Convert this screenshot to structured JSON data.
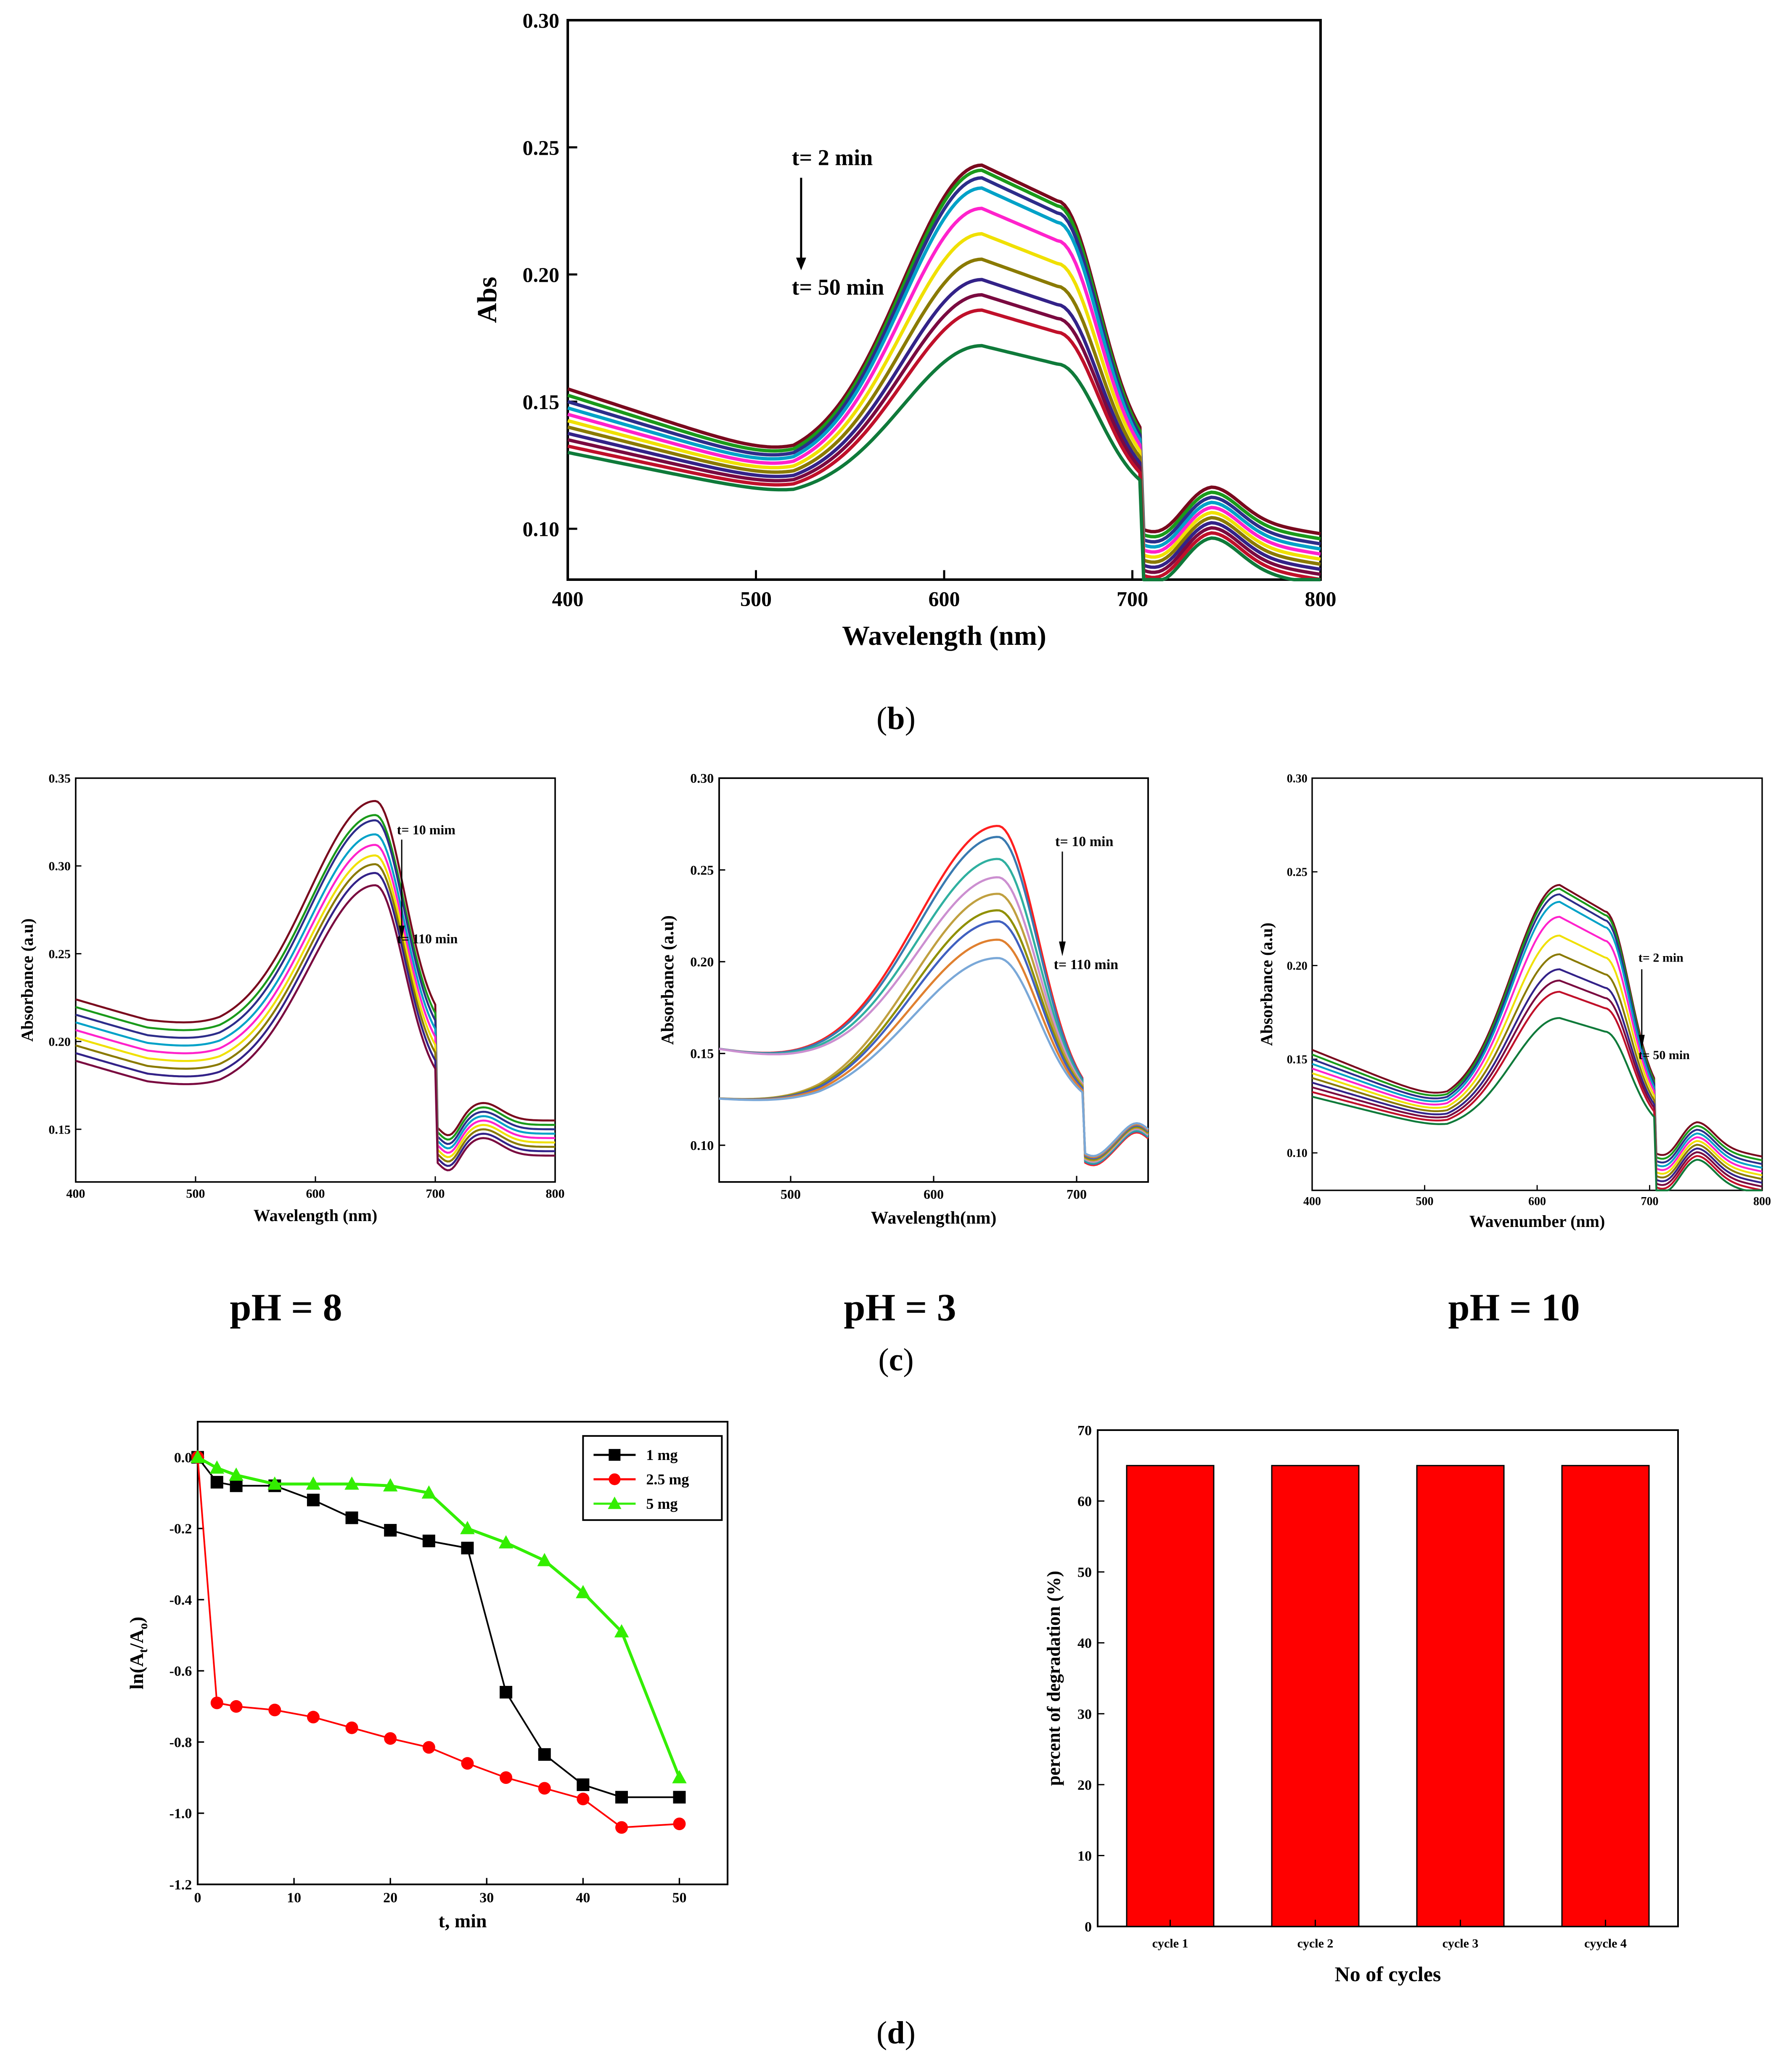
{
  "captions": {
    "b": "b",
    "c": "c",
    "d": "d"
  },
  "ph_labels": [
    "pH = 8",
    "pH = 3",
    "pH = 10"
  ],
  "colors": {
    "uv_palette": [
      "#7a0a1e",
      "#1a9a1a",
      "#2d2d8a",
      "#00a2c8",
      "#ff22cc",
      "#f0e000",
      "#8a7a00",
      "#332288",
      "#7a0a40",
      "#c0102a",
      "#0f7a3a"
    ],
    "ph3_palette": [
      "#ff2020",
      "#3a7ab0",
      "#30b0a0",
      "#cc8fd0",
      "#c0a040",
      "#909000",
      "#4060c0",
      "#e08030",
      "#7aa8d8"
    ],
    "series_1mg": "#000000",
    "series_25mg": "#ff0000",
    "series_5mg": "#33ee00",
    "bar_fill": "#ff0000"
  },
  "chart_data": [
    {
      "id": "b",
      "type": "line",
      "title": "",
      "xlabel": "Wavelength (nm)",
      "ylabel": "Abs",
      "xlim": [
        400,
        800
      ],
      "ylim": [
        0.08,
        0.3
      ],
      "xticks": [
        "400",
        "500",
        "600",
        "700",
        "800"
      ],
      "yticks": [
        "0.10",
        "0.15",
        "0.20",
        "0.25",
        "0.30"
      ],
      "annotations": {
        "start": "t= 2 min",
        "end": "t= 50 min"
      },
      "curves": {
        "x_peak": 620,
        "peaks": [
          0.243,
          0.241,
          0.238,
          0.234,
          0.226,
          0.216,
          0.206,
          0.198,
          0.192,
          0.186,
          0.172
        ]
      }
    },
    {
      "id": "c1",
      "type": "line",
      "xlabel": "Wavelength (nm)",
      "ylabel": "Absorbance (a.u)",
      "xlim": [
        400,
        800
      ],
      "ylim": [
        0.12,
        0.35
      ],
      "xticks": [
        "400",
        "500",
        "600",
        "700",
        "800"
      ],
      "yticks": [
        "0.15",
        "0.20",
        "0.25",
        "0.30",
        "0.35"
      ],
      "annotations": {
        "start": "t= 10 mim",
        "end": "t= 110 min"
      },
      "curves": {
        "x_peak": 650,
        "peaks": [
          0.337,
          0.329,
          0.326,
          0.318,
          0.312,
          0.306,
          0.301,
          0.296,
          0.289
        ]
      }
    },
    {
      "id": "c2",
      "type": "line",
      "xlabel": "Wavelength(nm)",
      "ylabel": "Absorbance (a.u)",
      "xlim": [
        450,
        750
      ],
      "ylim": [
        0.08,
        0.3
      ],
      "xticks": [
        "500",
        "600",
        "700"
      ],
      "yticks": [
        "0.10",
        "0.15",
        "0.20",
        "0.25",
        "0.30"
      ],
      "annotations": {
        "start": "t= 10 min",
        "end": "t= 110 min"
      },
      "curves": {
        "x_peak": 645,
        "peaks": [
          0.274,
          0.268,
          0.256,
          0.246,
          0.237,
          0.228,
          0.222,
          0.212,
          0.202
        ]
      }
    },
    {
      "id": "c3",
      "type": "line",
      "xlabel": "Wavenumber (nm)",
      "ylabel": "Absorbance (a.u)",
      "xlim": [
        400,
        800
      ],
      "ylim": [
        0.08,
        0.3
      ],
      "xticks": [
        "400",
        "500",
        "600",
        "700",
        "800"
      ],
      "yticks": [
        "0.10",
        "0.15",
        "0.20",
        "0.25",
        "0.30"
      ],
      "annotations": {
        "start": "t= 2 min",
        "end": "t= 50 min"
      },
      "curves": {
        "x_peak": 620,
        "peaks": [
          0.243,
          0.241,
          0.238,
          0.234,
          0.226,
          0.216,
          0.206,
          0.198,
          0.192,
          0.186,
          0.172
        ]
      }
    },
    {
      "id": "d1",
      "type": "line",
      "xlabel": "t, min",
      "ylabel": "ln(At/Ao)",
      "ylabel_parts": {
        "pre": "ln(A",
        "sub1": "t",
        "mid": "/A",
        "sub2": "o",
        "post": ")"
      },
      "xlim": [
        0,
        55
      ],
      "ylim": [
        -1.2,
        0.1
      ],
      "xticks": [
        "0",
        "10",
        "20",
        "30",
        "40",
        "50"
      ],
      "yticks": [
        "0.0",
        "-0.2",
        "-0.4",
        "-0.6",
        "-0.8",
        "-1.0",
        "-1.2"
      ],
      "legend_position": "top-right",
      "series": [
        {
          "name": "1 mg",
          "marker": "square",
          "x": [
            0,
            2,
            4,
            8,
            12,
            16,
            20,
            24,
            28,
            32,
            36,
            40,
            44,
            50
          ],
          "y": [
            0.0,
            -0.07,
            -0.08,
            -0.08,
            -0.12,
            -0.17,
            -0.205,
            -0.235,
            -0.255,
            -0.66,
            -0.835,
            -0.92,
            -0.955,
            -0.955
          ]
        },
        {
          "name": "2.5 mg",
          "marker": "circle",
          "x": [
            0,
            2,
            4,
            8,
            12,
            16,
            20,
            24,
            28,
            32,
            36,
            40,
            44,
            50
          ],
          "y": [
            0.0,
            -0.69,
            -0.7,
            -0.71,
            -0.73,
            -0.76,
            -0.79,
            -0.815,
            -0.86,
            -0.9,
            -0.93,
            -0.96,
            -1.04,
            -1.03
          ]
        },
        {
          "name": "5 mg",
          "marker": "triangle",
          "x": [
            0,
            2,
            4,
            8,
            12,
            16,
            20,
            24,
            28,
            32,
            36,
            40,
            44,
            50
          ],
          "y": [
            0.0,
            -0.03,
            -0.05,
            -0.075,
            -0.075,
            -0.075,
            -0.08,
            -0.1,
            -0.2,
            -0.24,
            -0.29,
            -0.38,
            -0.49,
            -0.9
          ]
        }
      ]
    },
    {
      "id": "d2",
      "type": "bar",
      "xlabel": "No of cycles",
      "ylabel": "percent of degradation (%)",
      "categories": [
        "cycle 1",
        "cycle 2",
        "cycle 3",
        "cyycle 4"
      ],
      "values": [
        65,
        65,
        65,
        65
      ],
      "ylim": [
        0,
        70
      ],
      "yticks": [
        "0",
        "10",
        "20",
        "30",
        "40",
        "50",
        "60",
        "70"
      ]
    }
  ]
}
